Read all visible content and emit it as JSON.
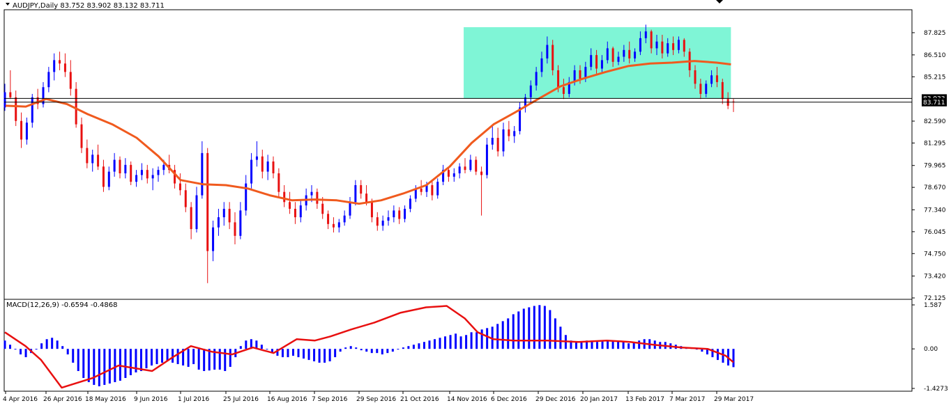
{
  "chart_data": [
    {
      "type": "candlestick",
      "symbol": "AUDJPY",
      "timeframe": "Daily",
      "title": "AUDJPY,Daily  83.752 83.902 83.132 83.711",
      "ohlc_last": {
        "open": 83.752,
        "high": 83.902,
        "low": 83.132,
        "close": 83.711
      },
      "ylim": [
        72.125,
        89.1
      ],
      "y_ticks": [
        "87.825",
        "86.510",
        "85.215",
        "83.933",
        "83.711",
        "82.590",
        "81.295",
        "79.965",
        "78.670",
        "77.340",
        "76.045",
        "74.750",
        "73.420",
        "72.125"
      ],
      "x_ticks": [
        "4 Apr 2016",
        "26 Apr 2016",
        "18 May 2016",
        "9 Jun 2016",
        "1 Jul 2016",
        "25 Jul 2016",
        "16 Aug 2016",
        "7 Sep 2016",
        "29 Sep 2016",
        "21 Oct 2016",
        "14 Nov 2016",
        "6 Dec 2016",
        "29 Dec 2016",
        "20 Jan 2017",
        "13 Feb 2017",
        "7 Mar 2017",
        "29 Mar 2017"
      ],
      "horizontal_lines": [
        {
          "value": 83.933,
          "label": "83.933",
          "color": "#000000"
        },
        {
          "value": 83.711,
          "label": "83.711",
          "color": "#000000"
        }
      ],
      "range_box": {
        "x_start": "21 Nov 2016",
        "x_end": "5 Apr 2017",
        "y_low": 83.95,
        "y_high": 88.15,
        "color": "#7ff5d6"
      },
      "moving_average": {
        "color": "#f05a1e",
        "points": [
          [
            "4 Apr 2016",
            83.5
          ],
          [
            "15 Apr 2016",
            83.45
          ],
          [
            "26 Apr 2016",
            83.9
          ],
          [
            "7 May 2016",
            83.6
          ],
          [
            "18 May 2016",
            83.0
          ],
          [
            "29 May 2016",
            82.4
          ],
          [
            "9 Jun 2016",
            81.6
          ],
          [
            "20 Jun 2016",
            80.5
          ],
          [
            "1 Jul 2016",
            79.1
          ],
          [
            "13 Jul 2016",
            78.85
          ],
          [
            "25 Jul 2016",
            78.8
          ],
          [
            "5 Aug 2016",
            78.6
          ],
          [
            "16 Aug 2016",
            78.2
          ],
          [
            "27 Aug 2016",
            77.9
          ],
          [
            "7 Sep 2016",
            77.95
          ],
          [
            "18 Sep 2016",
            77.9
          ],
          [
            "29 Sep 2016",
            77.7
          ],
          [
            "10 Oct 2016",
            77.9
          ],
          [
            "21 Oct 2016",
            78.3
          ],
          [
            "2 Nov 2016",
            78.8
          ],
          [
            "14 Nov 2016",
            79.9
          ],
          [
            "25 Nov 2016",
            81.3
          ],
          [
            "6 Dec 2016",
            82.4
          ],
          [
            "17 Dec 2016",
            83.1
          ],
          [
            "29 Dec 2016",
            83.9
          ],
          [
            "9 Jan 2017",
            84.65
          ],
          [
            "20 Jan 2017",
            85.1
          ],
          [
            "1 Feb 2017",
            85.5
          ],
          [
            "13 Feb 2017",
            85.85
          ],
          [
            "24 Feb 2017",
            86.0
          ],
          [
            "7 Mar 2017",
            86.05
          ],
          [
            "18 Mar 2017",
            86.15
          ],
          [
            "29 Mar 2017",
            86.05
          ],
          [
            "5 Apr 2017",
            85.95
          ]
        ]
      },
      "colors": {
        "up": "#0000ff",
        "down": "#e81010",
        "grid": "none"
      },
      "candles": [
        [
          83.4,
          84.8,
          83.2,
          84.3
        ],
        [
          84.3,
          85.6,
          83.9,
          84.0
        ],
        [
          84.0,
          84.4,
          82.3,
          82.6
        ],
        [
          82.6,
          83.1,
          81.0,
          81.5
        ],
        [
          81.5,
          82.8,
          81.2,
          82.5
        ],
        [
          82.5,
          84.2,
          82.2,
          84.0
        ],
        [
          84.0,
          84.5,
          83.3,
          83.6
        ],
        [
          83.6,
          84.9,
          83.4,
          84.6
        ],
        [
          84.6,
          85.8,
          84.3,
          85.5
        ],
        [
          85.5,
          86.6,
          85.0,
          86.2
        ],
        [
          86.2,
          86.7,
          85.6,
          86.0
        ],
        [
          86.0,
          86.6,
          85.2,
          85.5
        ],
        [
          85.5,
          86.2,
          84.1,
          84.5
        ],
        [
          84.5,
          84.9,
          82.2,
          82.4
        ],
        [
          82.4,
          82.8,
          80.7,
          81.0
        ],
        [
          81.0,
          81.5,
          79.8,
          80.1
        ],
        [
          80.1,
          80.9,
          79.6,
          80.6
        ],
        [
          80.6,
          81.2,
          79.7,
          79.9
        ],
        [
          79.9,
          80.3,
          78.4,
          78.7
        ],
        [
          78.7,
          79.9,
          78.5,
          79.6
        ],
        [
          79.6,
          80.7,
          79.3,
          80.3
        ],
        [
          80.3,
          80.5,
          79.2,
          79.5
        ],
        [
          79.5,
          80.4,
          79.2,
          80.0
        ],
        [
          80.0,
          80.2,
          78.8,
          79.0
        ],
        [
          79.0,
          79.7,
          78.7,
          79.4
        ],
        [
          79.4,
          80.1,
          79.1,
          79.7
        ],
        [
          79.7,
          80.0,
          78.9,
          79.2
        ],
        [
          79.2,
          79.8,
          78.5,
          79.4
        ],
        [
          79.4,
          79.9,
          79.0,
          79.7
        ],
        [
          79.7,
          80.3,
          79.4,
          80.0
        ],
        [
          80.0,
          80.6,
          79.5,
          79.7
        ],
        [
          79.7,
          80.0,
          78.6,
          78.9
        ],
        [
          78.9,
          79.5,
          78.2,
          78.5
        ],
        [
          78.5,
          78.9,
          77.2,
          77.5
        ],
        [
          77.5,
          77.8,
          75.6,
          76.2
        ],
        [
          76.2,
          78.7,
          76.0,
          78.2
        ],
        [
          78.2,
          81.4,
          78.0,
          80.7
        ],
        [
          80.7,
          81.0,
          73.0,
          74.9
        ],
        [
          74.9,
          76.7,
          74.3,
          76.3
        ],
        [
          76.3,
          77.4,
          75.8,
          76.9
        ],
        [
          76.9,
          77.8,
          76.4,
          77.4
        ],
        [
          77.4,
          77.8,
          76.2,
          76.6
        ],
        [
          76.6,
          77.2,
          75.3,
          75.8
        ],
        [
          75.8,
          77.8,
          75.6,
          77.3
        ],
        [
          77.3,
          79.4,
          77.0,
          78.9
        ],
        [
          78.9,
          80.7,
          78.6,
          80.3
        ],
        [
          80.3,
          81.4,
          79.9,
          80.5
        ],
        [
          80.5,
          80.9,
          79.2,
          79.6
        ],
        [
          79.6,
          80.6,
          79.1,
          80.2
        ],
        [
          80.2,
          80.5,
          79.2,
          79.5
        ],
        [
          79.5,
          79.8,
          78.1,
          78.4
        ],
        [
          78.4,
          78.8,
          77.5,
          77.8
        ],
        [
          77.8,
          78.4,
          77.1,
          77.4
        ],
        [
          77.4,
          77.8,
          76.5,
          76.9
        ],
        [
          76.9,
          77.9,
          76.6,
          77.6
        ],
        [
          77.6,
          78.6,
          77.3,
          78.2
        ],
        [
          78.2,
          78.8,
          77.8,
          78.4
        ],
        [
          78.4,
          78.6,
          77.4,
          77.7
        ],
        [
          77.7,
          78.1,
          76.8,
          77.1
        ],
        [
          77.1,
          77.3,
          76.2,
          76.5
        ],
        [
          76.5,
          76.9,
          76.0,
          76.3
        ],
        [
          76.3,
          76.8,
          76.0,
          76.6
        ],
        [
          76.6,
          77.3,
          76.4,
          77.0
        ],
        [
          77.0,
          78.1,
          76.8,
          77.8
        ],
        [
          77.8,
          79.1,
          77.6,
          78.8
        ],
        [
          78.8,
          79.1,
          78.0,
          78.3
        ],
        [
          78.3,
          78.8,
          77.6,
          77.8
        ],
        [
          77.8,
          78.0,
          76.6,
          76.9
        ],
        [
          76.9,
          77.2,
          76.1,
          76.4
        ],
        [
          76.4,
          77.0,
          76.1,
          76.7
        ],
        [
          76.7,
          77.3,
          76.4,
          76.9
        ],
        [
          76.9,
          77.6,
          76.6,
          77.3
        ],
        [
          77.3,
          77.5,
          76.5,
          76.8
        ],
        [
          76.8,
          77.6,
          76.6,
          77.4
        ],
        [
          77.4,
          78.2,
          77.2,
          78.0
        ],
        [
          78.0,
          78.8,
          77.8,
          78.6
        ],
        [
          78.6,
          79.1,
          78.2,
          78.4
        ],
        [
          78.4,
          79.0,
          78.1,
          78.8
        ],
        [
          78.8,
          79.1,
          77.9,
          78.2
        ],
        [
          78.2,
          79.2,
          78.0,
          79.0
        ],
        [
          79.0,
          80.0,
          78.8,
          79.7
        ],
        [
          79.7,
          79.9,
          79.0,
          79.3
        ],
        [
          79.3,
          79.8,
          79.0,
          79.5
        ],
        [
          79.5,
          80.1,
          79.2,
          79.9
        ],
        [
          79.9,
          80.4,
          79.5,
          79.7
        ],
        [
          79.7,
          80.6,
          79.6,
          80.3
        ],
        [
          80.3,
          80.5,
          79.4,
          79.6
        ],
        [
          79.6,
          79.9,
          77.0,
          79.4
        ],
        [
          79.4,
          81.6,
          79.2,
          81.2
        ],
        [
          81.2,
          82.3,
          80.9,
          81.6
        ],
        [
          81.6,
          82.2,
          80.5,
          80.8
        ],
        [
          80.8,
          82.5,
          80.5,
          82.1
        ],
        [
          82.1,
          82.6,
          81.4,
          81.7
        ],
        [
          81.7,
          82.3,
          81.3,
          82.0
        ],
        [
          82.0,
          83.7,
          81.8,
          83.4
        ],
        [
          83.4,
          84.2,
          83.1,
          84.0
        ],
        [
          84.0,
          85.0,
          83.7,
          84.7
        ],
        [
          84.7,
          85.8,
          84.4,
          85.5
        ],
        [
          85.5,
          86.7,
          85.2,
          86.3
        ],
        [
          86.3,
          87.6,
          86.0,
          87.1
        ],
        [
          87.1,
          87.4,
          85.3,
          85.6
        ],
        [
          85.6,
          85.9,
          84.3,
          84.6
        ],
        [
          84.6,
          85.1,
          83.9,
          84.2
        ],
        [
          84.2,
          85.2,
          84.0,
          84.9
        ],
        [
          84.9,
          85.9,
          84.7,
          85.6
        ],
        [
          85.6,
          85.9,
          84.8,
          85.1
        ],
        [
          85.1,
          86.1,
          84.9,
          85.8
        ],
        [
          85.8,
          86.9,
          85.6,
          86.5
        ],
        [
          86.5,
          86.8,
          85.4,
          85.7
        ],
        [
          85.7,
          86.5,
          85.5,
          86.2
        ],
        [
          86.2,
          87.3,
          86.0,
          86.9
        ],
        [
          86.9,
          87.0,
          85.8,
          86.1
        ],
        [
          86.1,
          86.7,
          85.9,
          86.4
        ],
        [
          86.4,
          87.1,
          86.1,
          86.8
        ],
        [
          86.8,
          87.3,
          86.0,
          86.3
        ],
        [
          86.3,
          86.9,
          86.1,
          86.7
        ],
        [
          86.7,
          87.9,
          86.5,
          87.5
        ],
        [
          87.5,
          88.3,
          87.2,
          87.9
        ],
        [
          87.9,
          88.0,
          86.6,
          86.9
        ],
        [
          86.9,
          87.7,
          86.5,
          87.3
        ],
        [
          87.3,
          87.7,
          86.3,
          86.6
        ],
        [
          86.6,
          87.5,
          86.4,
          87.2
        ],
        [
          87.2,
          87.6,
          86.5,
          86.8
        ],
        [
          86.8,
          87.6,
          86.6,
          87.4
        ],
        [
          87.4,
          87.5,
          86.4,
          86.7
        ],
        [
          86.7,
          86.9,
          85.2,
          85.6
        ],
        [
          85.6,
          85.9,
          84.5,
          84.8
        ],
        [
          84.8,
          85.1,
          83.9,
          84.2
        ],
        [
          84.2,
          85.0,
          84.0,
          84.8
        ],
        [
          84.8,
          85.6,
          84.6,
          85.3
        ],
        [
          85.3,
          85.8,
          84.6,
          84.9
        ],
        [
          84.9,
          85.1,
          83.6,
          83.9
        ],
        [
          83.9,
          84.3,
          83.3,
          83.5
        ],
        [
          83.752,
          83.902,
          83.132,
          83.711
        ]
      ]
    },
    {
      "type": "macd",
      "title": "MACD(12,26,9) -0.6594 -0.4868",
      "params": "12,26,9",
      "macd_value": -0.6594,
      "signal_value": -0.4868,
      "ylim": [
        -1.4273,
        1.587
      ],
      "y_ticks": [
        "1.587",
        "0.00",
        "-1.4273"
      ],
      "colors": {
        "histogram": "#0000ff",
        "signal": "#e81010"
      },
      "histogram": [
        0.3,
        0.15,
        0.0,
        -0.2,
        -0.3,
        -0.15,
        0.0,
        0.2,
        0.35,
        0.4,
        0.3,
        0.1,
        -0.2,
        -0.5,
        -0.8,
        -1.05,
        -1.2,
        -1.3,
        -1.35,
        -1.3,
        -1.25,
        -1.2,
        -1.15,
        -1.05,
        -0.95,
        -0.85,
        -0.8,
        -0.7,
        -0.6,
        -0.55,
        -0.5,
        -0.45,
        -0.5,
        -0.55,
        -0.6,
        -0.65,
        -0.55,
        -0.75,
        -0.8,
        -0.78,
        -0.75,
        -0.75,
        -0.8,
        -0.65,
        -0.3,
        0.1,
        0.3,
        0.35,
        0.3,
        0.15,
        0.0,
        -0.15,
        -0.25,
        -0.3,
        -0.3,
        -0.25,
        -0.3,
        -0.35,
        -0.4,
        -0.45,
        -0.5,
        -0.5,
        -0.45,
        -0.3,
        -0.1,
        0.05,
        0.1,
        0.05,
        -0.05,
        -0.1,
        -0.15,
        -0.15,
        -0.2,
        -0.15,
        -0.1,
        0.0,
        0.05,
        0.1,
        0.15,
        0.2,
        0.25,
        0.3,
        0.35,
        0.4,
        0.45,
        0.5,
        0.55,
        0.45,
        0.5,
        0.6,
        0.6,
        0.7,
        0.75,
        0.8,
        0.9,
        1.0,
        1.1,
        1.25,
        1.35,
        1.45,
        1.5,
        1.55,
        1.58,
        1.55,
        1.4,
        1.1,
        0.8,
        0.5,
        0.3,
        0.25,
        0.25,
        0.3,
        0.3,
        0.25,
        0.3,
        0.3,
        0.3,
        0.3,
        0.25,
        0.2,
        0.25,
        0.3,
        0.35,
        0.35,
        0.3,
        0.25,
        0.25,
        0.2,
        0.15,
        0.1,
        0.05,
        0.05,
        0.0,
        -0.1,
        -0.2,
        -0.3,
        -0.4,
        -0.5,
        -0.6,
        -0.6594
      ],
      "signal": [
        [
          0,
          0.6
        ],
        [
          8,
          0.1
        ],
        [
          14,
          -0.4
        ],
        [
          22,
          -1.4
        ],
        [
          34,
          -1.05
        ],
        [
          44,
          -0.6
        ],
        [
          57,
          -0.8
        ],
        [
          65,
          -0.3
        ],
        [
          72,
          0.1
        ],
        [
          80,
          -0.1
        ],
        [
          88,
          -0.2
        ],
        [
          96,
          0.05
        ],
        [
          104,
          -0.15
        ],
        [
          113,
          0.35
        ],
        [
          120,
          0.3
        ],
        [
          126,
          0.45
        ],
        [
          134,
          0.7
        ],
        [
          143,
          0.95
        ],
        [
          153,
          1.3
        ],
        [
          163,
          1.5
        ],
        [
          171,
          1.55
        ],
        [
          178,
          1.1
        ],
        [
          183,
          0.6
        ],
        [
          189,
          0.35
        ],
        [
          197,
          0.3
        ],
        [
          210,
          0.3
        ],
        [
          222,
          0.25
        ],
        [
          233,
          0.3
        ],
        [
          242,
          0.25
        ],
        [
          251,
          0.15
        ],
        [
          262,
          0.05
        ],
        [
          272,
          0.0
        ],
        [
          279,
          -0.25
        ],
        [
          282,
          -0.4868
        ]
      ]
    }
  ]
}
